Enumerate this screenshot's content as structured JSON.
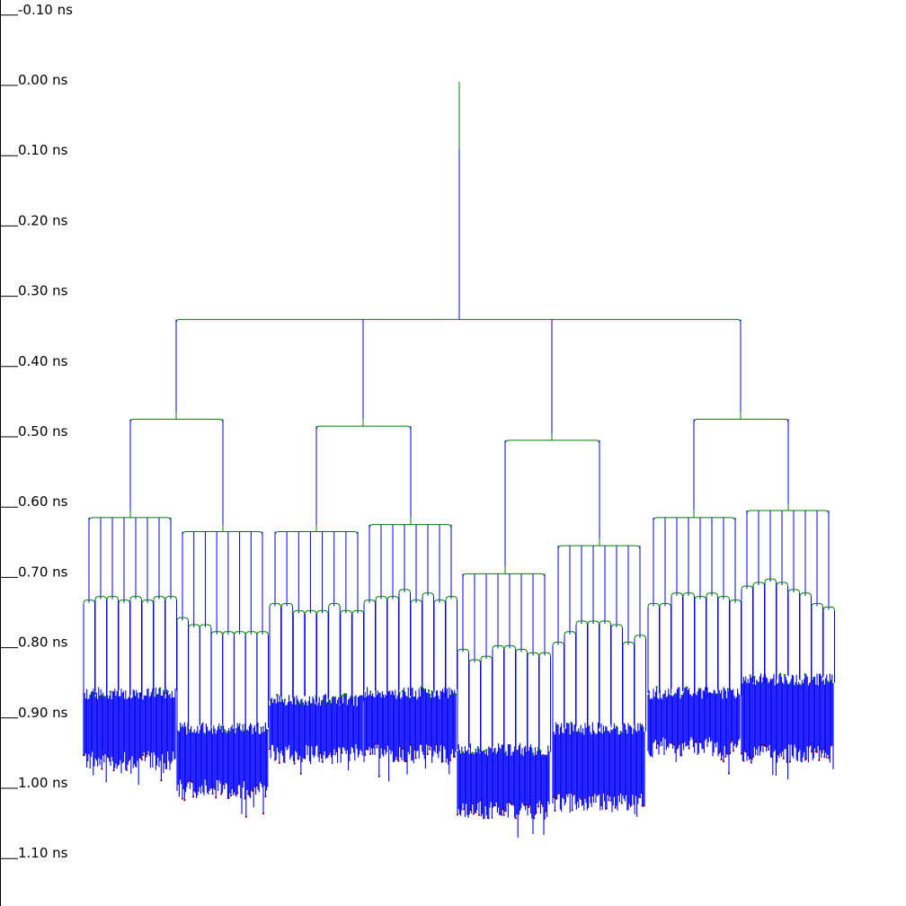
{
  "axis": {
    "ticks": [
      "-0.10 ns",
      "0.00 ns",
      "0.10 ns",
      "0.20 ns",
      "0.30 ns",
      "0.40 ns",
      "0.50 ns",
      "0.60 ns",
      "0.70 ns",
      "0.80 ns",
      "0.90 ns",
      "1.00 ns",
      "1.10 ns"
    ],
    "tick_values_ns": [
      -0.1,
      0.0,
      0.1,
      0.2,
      0.3,
      0.4,
      0.5,
      0.6,
      0.7,
      0.8,
      0.9,
      1.0,
      1.1
    ],
    "range_ns": [
      -0.1,
      1.1
    ]
  },
  "colors": {
    "wire": "#0000ff",
    "buffer": "#008000",
    "sink": "#8b0000",
    "axis": "#000000"
  },
  "tree": {
    "root_ns": 0.0,
    "root_buffer_end_ns": 0.095,
    "root_split_ns": 0.338,
    "level1_split_ns": [
      0.48,
      0.49,
      0.51,
      0.48
    ],
    "level2_split_ns": [
      [
        0.62,
        0.64
      ],
      [
        0.64,
        0.63
      ],
      [
        0.7,
        0.66
      ],
      [
        0.62,
        0.61
      ]
    ],
    "level3_end_ns": [
      [
        [
          0.745,
          0.74,
          0.74,
          0.745,
          0.74,
          0.745,
          0.74,
          0.74
        ],
        [
          0.77,
          0.78,
          0.78,
          0.79,
          0.79,
          0.79,
          0.79,
          0.79
        ]
      ],
      [
        [
          0.75,
          0.75,
          0.76,
          0.76,
          0.76,
          0.75,
          0.76,
          0.76
        ],
        [
          0.745,
          0.74,
          0.74,
          0.73,
          0.745,
          0.735,
          0.745,
          0.74
        ]
      ],
      [
        [
          0.815,
          0.83,
          0.825,
          0.81,
          0.81,
          0.815,
          0.82,
          0.82
        ],
        [
          0.805,
          0.79,
          0.775,
          0.775,
          0.775,
          0.78,
          0.805,
          0.795
        ]
      ],
      [
        [
          0.75,
          0.75,
          0.735,
          0.735,
          0.74,
          0.735,
          0.74,
          0.745
        ],
        [
          0.725,
          0.72,
          0.715,
          0.72,
          0.73,
          0.735,
          0.75,
          0.755
        ]
      ]
    ],
    "leaf_band_ns": [
      [
        [
          0.87,
          0.98
        ],
        [
          0.92,
          1.02
        ]
      ],
      [
        [
          0.88,
          0.97
        ],
        [
          0.87,
          0.97
        ]
      ],
      [
        [
          0.95,
          1.05
        ],
        [
          0.92,
          1.04
        ]
      ],
      [
        [
          0.87,
          0.96
        ],
        [
          0.85,
          0.97
        ]
      ]
    ]
  }
}
